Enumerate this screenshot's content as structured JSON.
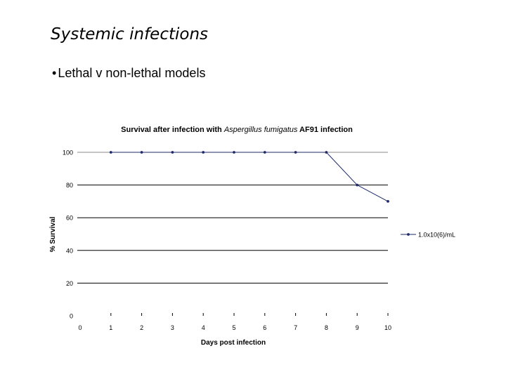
{
  "slide": {
    "title": "Systemic infections",
    "bullet_marker": "•",
    "bullet": "Lethal v non-lethal models"
  },
  "chart_data": {
    "type": "line",
    "title_parts": [
      {
        "text": "Survival after infection with ",
        "italic": false
      },
      {
        "text": "Aspergillus fumigatus",
        "italic": true
      },
      {
        "text": "  AF91 infection",
        "italic": false
      }
    ],
    "xlabel": "Days post infection",
    "ylabel": "% Survival",
    "x_ticks": [
      0,
      1,
      2,
      3,
      4,
      5,
      6,
      7,
      8,
      9,
      10
    ],
    "y_ticks": [
      0,
      20,
      40,
      60,
      80,
      100
    ],
    "xlim": [
      0,
      10
    ],
    "ylim": [
      0,
      100
    ],
    "grid": "horizontal",
    "legend_position": "right",
    "series": [
      {
        "name": "1.0x10(6)/mL",
        "color": "#1f2a6b",
        "x": [
          1,
          2,
          3,
          4,
          5,
          6,
          7,
          8,
          9,
          10
        ],
        "y": [
          100,
          100,
          100,
          100,
          100,
          100,
          100,
          100,
          80,
          70
        ]
      }
    ]
  }
}
